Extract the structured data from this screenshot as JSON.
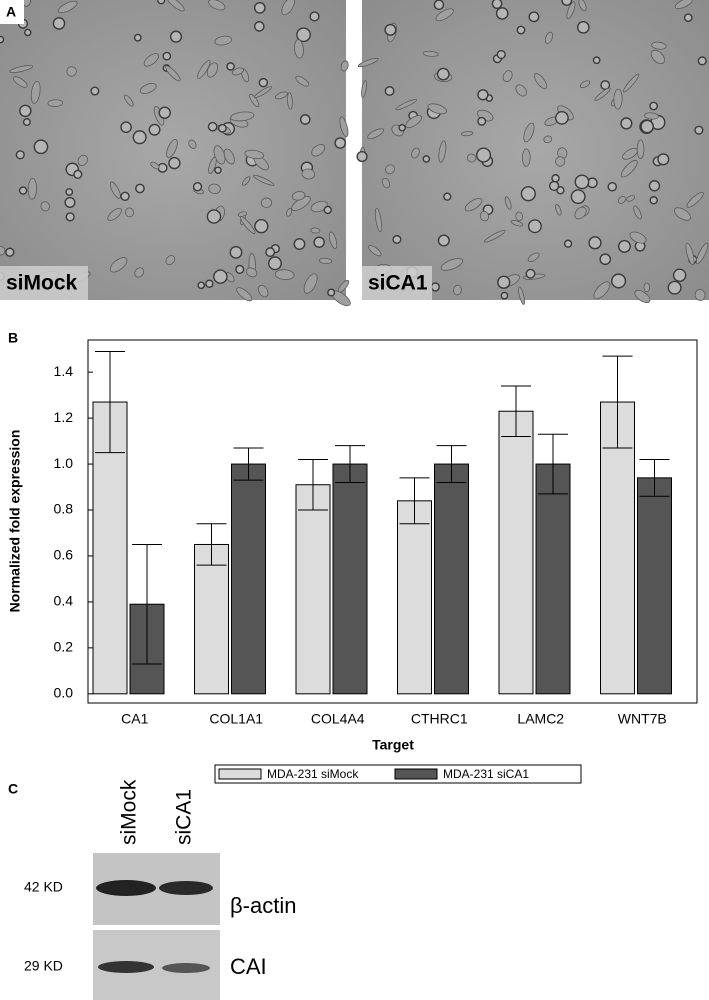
{
  "chart_data": {
    "type": "bar",
    "y_label": "Normalized fold expression",
    "x_label": "Target",
    "categories": [
      "CA1",
      "COL1A1",
      "COL4A4",
      "CTHRC1",
      "LAMC2",
      "WNT7B"
    ],
    "series": [
      {
        "name": "MDA-231 siMock",
        "color": "#dcdcdc",
        "values": [
          1.27,
          0.65,
          0.91,
          0.84,
          1.23,
          1.27
        ],
        "errors": [
          0.22,
          0.09,
          0.11,
          0.1,
          0.11,
          0.2
        ]
      },
      {
        "name": "MDA-231 siCA1",
        "color": "#555555",
        "values": [
          0.39,
          1.0,
          1.0,
          1.0,
          1.0,
          0.94
        ],
        "errors": [
          0.26,
          0.07,
          0.08,
          0.08,
          0.13,
          0.08
        ]
      }
    ],
    "ylim": [
      -0.04,
      1.54
    ],
    "yticks": [
      {
        "value": 0,
        "label": "0.0"
      },
      0.2,
      0.4,
      0.6,
      0.8,
      {
        "value": 1,
        "label": "1.0"
      },
      1.2,
      1.4
    ],
    "legend": "bottom"
  },
  "figure": {
    "panel_labels": [
      "A",
      "B",
      "C"
    ],
    "micrographs": [
      "siMock",
      "siCA1"
    ],
    "blot": {
      "lanes": [
        "siMock",
        "siCA1"
      ],
      "sizes": [
        "42 KD",
        "29 KD"
      ],
      "proteins": [
        "β-actin",
        "CAI"
      ]
    }
  }
}
